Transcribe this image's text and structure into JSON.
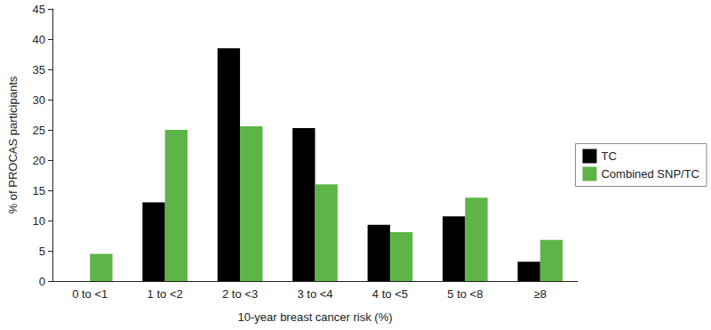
{
  "chart_data": {
    "type": "bar",
    "x_label": "10-year breast cancer risk (%)",
    "y_label": "% of PROCAS participants",
    "categories": [
      "0 to <1",
      "1 to <2",
      "2 to <3",
      "3 to <4",
      "4 to <5",
      "5 to <8",
      "≥8"
    ],
    "series": [
      {
        "name": "TC",
        "color": "#000000",
        "values": [
          0,
          13,
          38.5,
          25.3,
          9.3,
          10.7,
          3.2
        ]
      },
      {
        "name": "Combined SNP/TC",
        "color": "#5cb546",
        "values": [
          4.5,
          25,
          25.6,
          16,
          8.1,
          13.8,
          6.8
        ]
      }
    ],
    "ylim": [
      0,
      45
    ],
    "yticks": [
      0,
      5,
      10,
      15,
      20,
      25,
      30,
      35,
      40,
      45
    ],
    "grid": false,
    "legend": "right"
  }
}
